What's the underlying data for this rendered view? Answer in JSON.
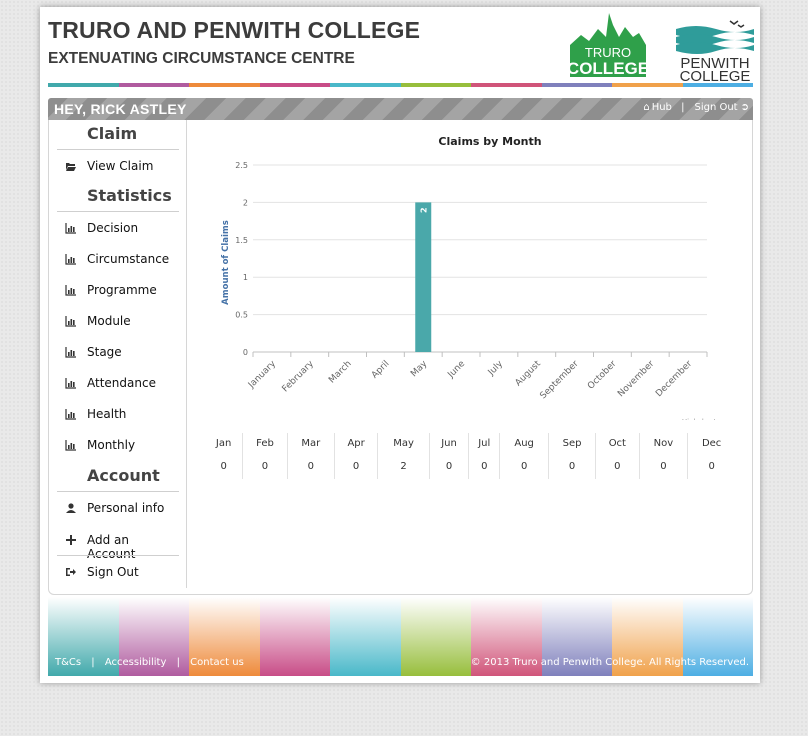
{
  "header": {
    "title": "TRURO AND PENWITH COLLEGE",
    "subtitle": "EXTENUATING CIRCUMSTANCE CENTRE",
    "logo_truro_line1": "TRURO",
    "logo_truro_line2": "COLLEGE",
    "logo_penwith_line1": "PENWITH",
    "logo_penwith_line2": "COLLEGE"
  },
  "stripe_colors": [
    "#41a9ab",
    "#b05b9f",
    "#ee8a3a",
    "#c84c87",
    "#49b8c9",
    "#97be3c",
    "#d05479",
    "#7f80bc",
    "#f0a14a",
    "#4daee3"
  ],
  "userbar": {
    "greeting": "HEY, RICK ASTLEY",
    "hub_label": "Hub",
    "separator": "|",
    "signout_label": "Sign Out"
  },
  "sidebar": {
    "claim_heading": "Claim",
    "view_claim": "View Claim",
    "statistics_heading": "Statistics",
    "stats": [
      "Decision",
      "Circumstance",
      "Programme",
      "Module",
      "Stage",
      "Attendance",
      "Health",
      "Monthly"
    ],
    "account_heading": "Account",
    "personal_info": "Personal info",
    "add_account": "Add an Account",
    "sign_out": "Sign Out"
  },
  "chart_data": {
    "type": "bar",
    "title": "Claims by Month",
    "xlabel": "",
    "ylabel": "Amount of Claims",
    "categories": [
      "January",
      "February",
      "March",
      "April",
      "May",
      "June",
      "July",
      "August",
      "September",
      "October",
      "November",
      "December"
    ],
    "values": [
      0,
      0,
      0,
      0,
      2,
      0,
      0,
      0,
      0,
      0,
      0,
      0
    ],
    "ylim": [
      0,
      2.5
    ],
    "yticks": [
      "0",
      "0.5",
      "1",
      "1.5",
      "2",
      "2.5"
    ],
    "data_labels": [
      "2"
    ],
    "bar_color": "#4aa8aa",
    "credit": "Highcharts.com",
    "grid": true
  },
  "table": {
    "months": [
      "Jan",
      "Feb",
      "Mar",
      "Apr",
      "May",
      "Jun",
      "Jul",
      "Aug",
      "Sep",
      "Oct",
      "Nov",
      "Dec"
    ],
    "counts": [
      "0",
      "0",
      "0",
      "0",
      "2",
      "0",
      "0",
      "0",
      "0",
      "0",
      "0",
      "0"
    ]
  },
  "footer": {
    "tcs": "T&Cs",
    "accessibility": "Accessibility",
    "contact": "Contact us",
    "sep": "|",
    "copyright": "© 2013 Truro and Penwith College. All Rights Reserved."
  }
}
